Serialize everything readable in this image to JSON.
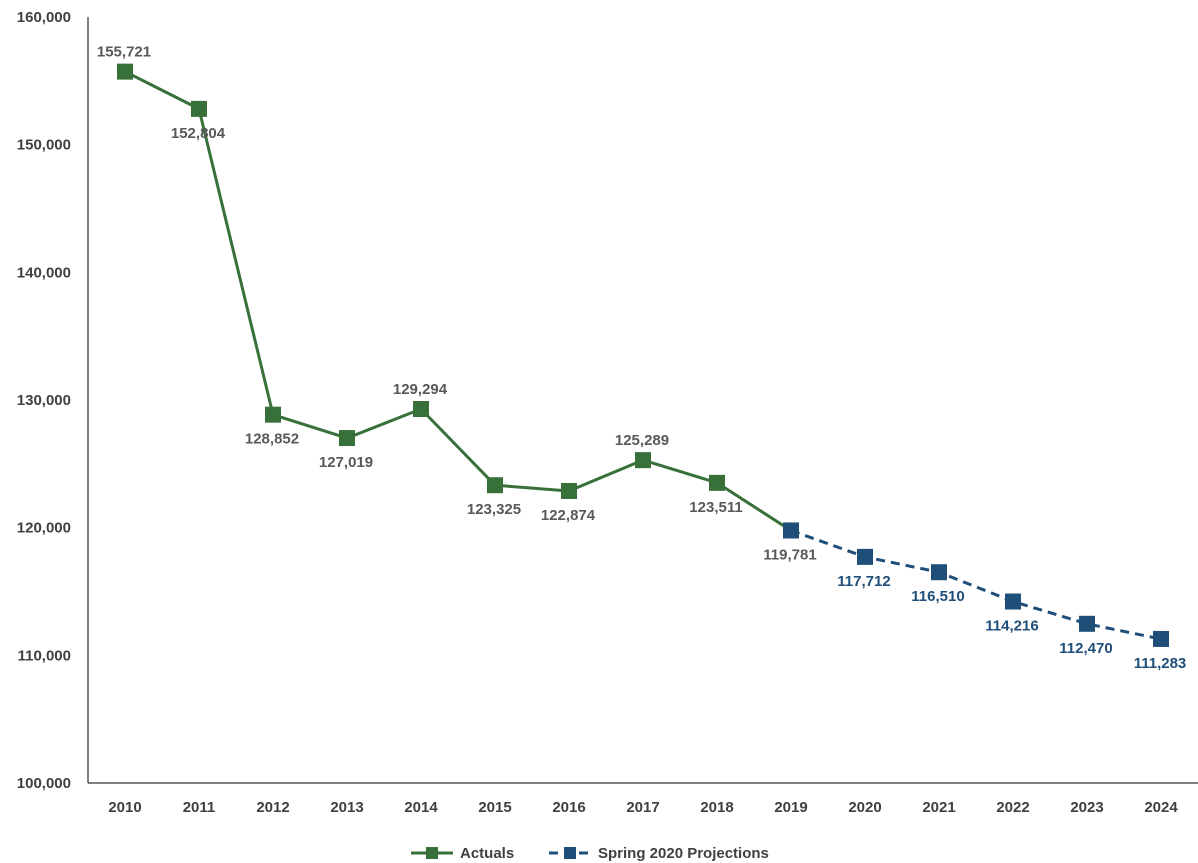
{
  "chart_data": {
    "type": "line",
    "title": "",
    "xlabel": "",
    "ylabel": "",
    "ylim": [
      100000,
      160000
    ],
    "y_ticks": [
      100000,
      110000,
      120000,
      130000,
      140000,
      150000,
      160000
    ],
    "y_tick_labels": [
      "100,000",
      "110,000",
      "120,000",
      "130,000",
      "140,000",
      "150,000",
      "160,000"
    ],
    "categories": [
      "2010",
      "2011",
      "2012",
      "2013",
      "2014",
      "2015",
      "2016",
      "2017",
      "2018",
      "2019",
      "2020",
      "2021",
      "2022",
      "2023",
      "2024"
    ],
    "grid": false,
    "legend_position": "bottom",
    "series": [
      {
        "name": "Actuals",
        "color": "#38703A",
        "line_style": "solid",
        "marker": "square",
        "x": [
          "2010",
          "2011",
          "2012",
          "2013",
          "2014",
          "2015",
          "2016",
          "2017",
          "2018",
          "2019"
        ],
        "values": [
          155721,
          152804,
          128852,
          127019,
          129294,
          123325,
          122874,
          125289,
          123511,
          119781
        ],
        "labels": [
          "155,721",
          "152,804",
          "128,852",
          "127,019",
          "129,294",
          "123,325",
          "122,874",
          "125,289",
          "123,511",
          "119,781"
        ],
        "label_positions": [
          "above",
          "below",
          "below",
          "below",
          "above",
          "below",
          "below",
          "above",
          "below",
          "below"
        ]
      },
      {
        "name": "Spring 2020 Projections",
        "color": "#1F4E79",
        "line_style": "dashed",
        "marker": "square",
        "x": [
          "2019",
          "2020",
          "2021",
          "2022",
          "2023",
          "2024"
        ],
        "values": [
          119781,
          117712,
          116510,
          114216,
          112470,
          111283
        ],
        "labels": [
          "",
          "117,712",
          "116,510",
          "114,216",
          "112,470",
          "111,283"
        ],
        "label_positions": [
          "none",
          "below",
          "below",
          "below",
          "below",
          "below"
        ]
      }
    ]
  }
}
